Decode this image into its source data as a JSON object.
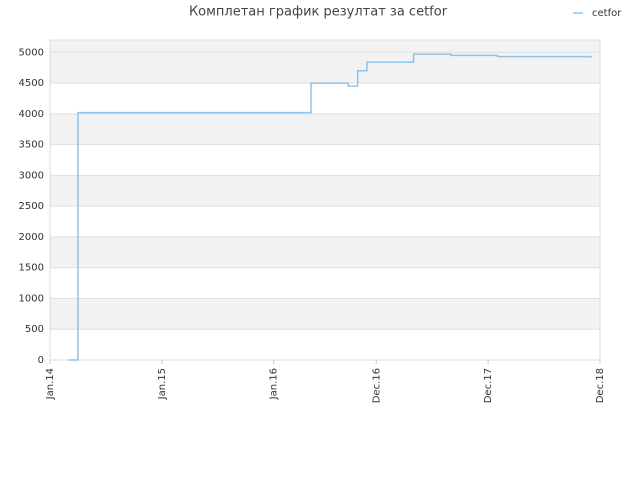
{
  "chart_data": {
    "type": "line",
    "title": "Комплетан график резултат за cetfor",
    "x": [
      "2014-03",
      "2014-04",
      "2016-05",
      "2016-09",
      "2016-10",
      "2016-11",
      "2017-04",
      "2017-08",
      "2018-01",
      "2018-06",
      "2018-11"
    ],
    "series": [
      {
        "name": "cetfor",
        "color": "#8ec3ee",
        "values": [
          0,
          4020,
          4500,
          4450,
          4700,
          4840,
          4970,
          4950,
          4930,
          4930,
          4910
        ]
      }
    ],
    "xlim": [
      "2014-01",
      "2018-12"
    ],
    "xticks": [
      {
        "value": "2014-01",
        "label": "Jan.14"
      },
      {
        "value": "2015-01",
        "label": "Jan.15"
      },
      {
        "value": "2016-01",
        "label": "Jan.16"
      },
      {
        "value": "2016-12",
        "label": "Dec.16"
      },
      {
        "value": "2017-12",
        "label": "Dec.17"
      },
      {
        "value": "2018-12",
        "label": "Dec.18"
      }
    ],
    "ylim": [
      0,
      5200
    ],
    "yticks": [
      0,
      500,
      1000,
      1500,
      2000,
      2500,
      3000,
      3500,
      4000,
      4500,
      5000
    ],
    "grid": true,
    "legend": "top-right"
  }
}
